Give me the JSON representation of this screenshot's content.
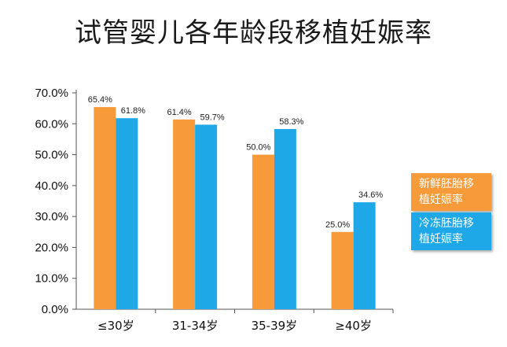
{
  "colors": {
    "series1": "#F79A3A",
    "series2": "#1EA8E8",
    "axis": "#555555"
  },
  "chart_data": {
    "type": "bar",
    "title": "试管婴儿各年龄段移植妊娠率",
    "categories": [
      "≤30岁",
      "31-34岁",
      "35-39岁",
      "≥40岁"
    ],
    "series": [
      {
        "name": "新鲜胚胎移植妊娠率",
        "values": [
          65.4,
          61.4,
          50.0,
          25.0
        ],
        "labels": [
          "65.4%",
          "61.4%",
          "50.0%",
          "25.0%"
        ]
      },
      {
        "name": "冷冻胚胎移植妊娠率",
        "values": [
          61.8,
          59.7,
          58.3,
          34.6
        ],
        "labels": [
          "61.8%",
          "59.7%",
          "58.3%",
          "34.6%"
        ]
      }
    ],
    "ylim": [
      0,
      70
    ],
    "yticks": [
      0,
      10,
      20,
      30,
      40,
      50,
      60,
      70
    ],
    "ytick_labels": [
      "0.0%",
      "10.0%",
      "20.0%",
      "30.0%",
      "40.0%",
      "50.0%",
      "60.0%",
      "70.0%"
    ],
    "legend": {
      "placement": "right",
      "lines": [
        [
          "新鲜胚胎移",
          "植妊娠率"
        ],
        [
          "冷冻胚胎移",
          "植妊娠率"
        ]
      ]
    },
    "grid": false
  }
}
